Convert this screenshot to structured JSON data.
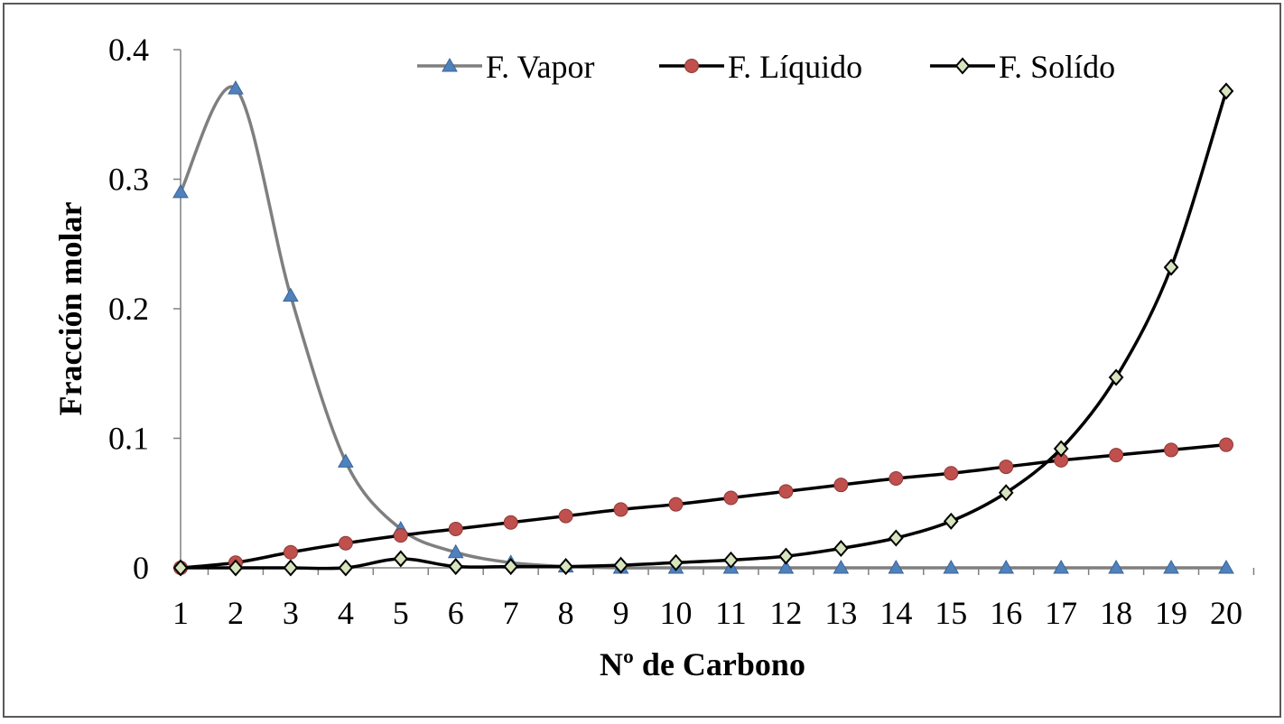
{
  "chart_data": {
    "type": "line",
    "smooth": true,
    "xlabel": "Nº de Carbono",
    "ylabel": "Fracción molar",
    "x": [
      1,
      2,
      3,
      4,
      5,
      6,
      7,
      8,
      9,
      10,
      11,
      12,
      13,
      14,
      15,
      16,
      17,
      18,
      19,
      20
    ],
    "xticks": [
      "1",
      "2",
      "3",
      "4",
      "5",
      "6",
      "7",
      "8",
      "9",
      "10",
      "11",
      "12",
      "13",
      "14",
      "15",
      "16",
      "17",
      "18",
      "19",
      "20"
    ],
    "ylim": [
      0,
      0.4
    ],
    "yticks": [
      0,
      0.1,
      0.2,
      0.3,
      0.4
    ],
    "ytick_labels": [
      "0",
      "0.1",
      "0.2",
      "0.3",
      "0.4"
    ],
    "grid": false,
    "legend_position": "top",
    "series": [
      {
        "name": "F. Vapor",
        "line_color": "#7f7f7f",
        "marker": "triangle",
        "marker_color": "#4f81bd",
        "values": [
          0.29,
          0.37,
          0.21,
          0.082,
          0.03,
          0.012,
          0.004,
          0.001,
          0.0,
          0.0,
          0.0,
          0.0,
          0.0,
          0.0,
          0.0,
          0.0,
          0.0,
          0.0,
          0.0,
          0.0
        ]
      },
      {
        "name": "F. Líquido",
        "line_color": "#000000",
        "marker": "circle",
        "marker_color": "#c0504d",
        "values": [
          0.0,
          0.004,
          0.012,
          0.019,
          0.025,
          0.03,
          0.035,
          0.04,
          0.045,
          0.049,
          0.054,
          0.059,
          0.064,
          0.069,
          0.073,
          0.078,
          0.083,
          0.087,
          0.091,
          0.095
        ]
      },
      {
        "name": "F. Solído",
        "line_color": "#000000",
        "marker": "diamond",
        "marker_color": "#d7e4bd",
        "values": [
          0.0,
          0.0,
          0.0,
          0.0,
          0.007,
          0.001,
          0.001,
          0.001,
          0.002,
          0.004,
          0.006,
          0.009,
          0.015,
          0.023,
          0.036,
          0.058,
          0.092,
          0.147,
          0.232,
          0.368
        ]
      }
    ]
  }
}
